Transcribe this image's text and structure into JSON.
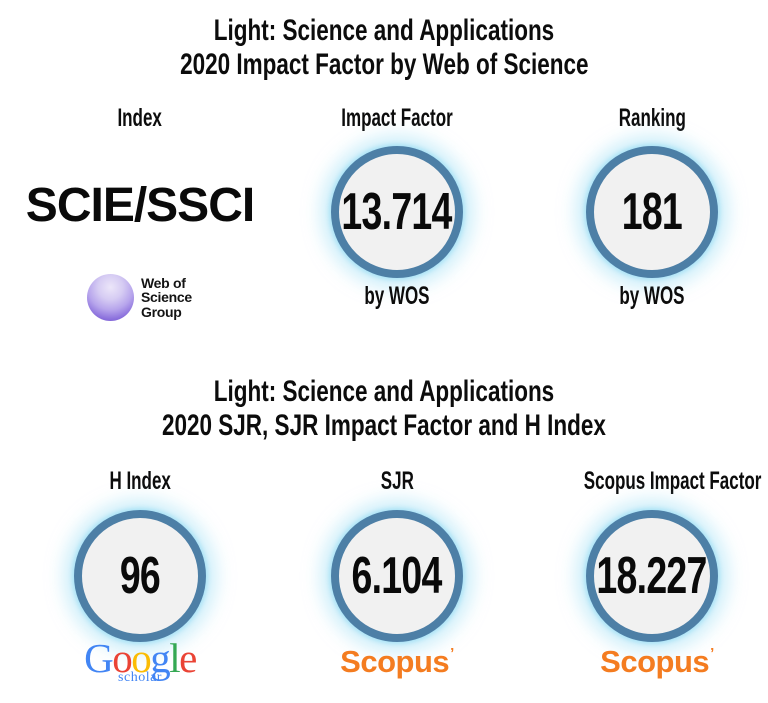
{
  "colors": {
    "background": "#ffffff",
    "text": "#0c0c0c",
    "circle_border": "#4d7fa6",
    "circle_fill": "#f1f1f1",
    "circle_glow": "#a8e2f5",
    "scopus_orange": "#F47C20",
    "wos_sphere_purple": "#7a5fd3"
  },
  "header1": {
    "line1": "Light: Science and Applications",
    "line2": "2020 Impact Factor by Web of Science"
  },
  "header2": {
    "line1": "Light: Science and Applications",
    "line2": "2020 SJR, SJR Impact Factor and H Index"
  },
  "panel1": {
    "labels": {
      "index": "Index",
      "impact_factor": "Impact Factor",
      "ranking": "Ranking"
    },
    "index_value": "SCIE/SSCI",
    "impact_factor_value": "13.714",
    "impact_factor_source": "by WOS",
    "ranking_value": "181",
    "ranking_source": "by WOS"
  },
  "panel2": {
    "labels": {
      "h_index": "H Index",
      "sjr": "SJR",
      "scopus_impact_factor": "Scopus Impact Factor"
    },
    "h_index_value": "96",
    "sjr_value": "6.104",
    "scopus_impact_factor_value": "18.227"
  },
  "logos": {
    "wos": {
      "line1": "Web of",
      "line2": "Science",
      "line3": "Group"
    },
    "google": {
      "letters": [
        {
          "ch": "G",
          "color": "#4285F4"
        },
        {
          "ch": "o",
          "color": "#EA4335"
        },
        {
          "ch": "o",
          "color": "#FBBC05"
        },
        {
          "ch": "g",
          "color": "#4285F4"
        },
        {
          "ch": "l",
          "color": "#34A853"
        },
        {
          "ch": "e",
          "color": "#EA4335"
        }
      ],
      "sub": "scholar",
      "sub_color": "#4285F4"
    },
    "scopus": {
      "text": "Scopus",
      "mark": "’",
      "color": "#F47C20"
    }
  },
  "chart_data": [
    {
      "type": "table",
      "title": "Light: Science and Applications — 2020 Impact Factor by Web of Science",
      "columns": [
        "Index",
        "Impact Factor",
        "Ranking"
      ],
      "rows": [
        [
          "SCIE/SSCI (Web of Science Group)",
          "13.714 (by WOS)",
          "181 (by WOS)"
        ]
      ]
    },
    {
      "type": "table",
      "title": "Light: Science and Applications — 2020 SJR, SJR Impact Factor and H Index",
      "columns": [
        "H Index",
        "SJR",
        "Scopus Impact Factor"
      ],
      "rows": [
        [
          "96 (Google scholar)",
          "6.104 (Scopus)",
          "18.227 (Scopus)"
        ]
      ]
    }
  ]
}
